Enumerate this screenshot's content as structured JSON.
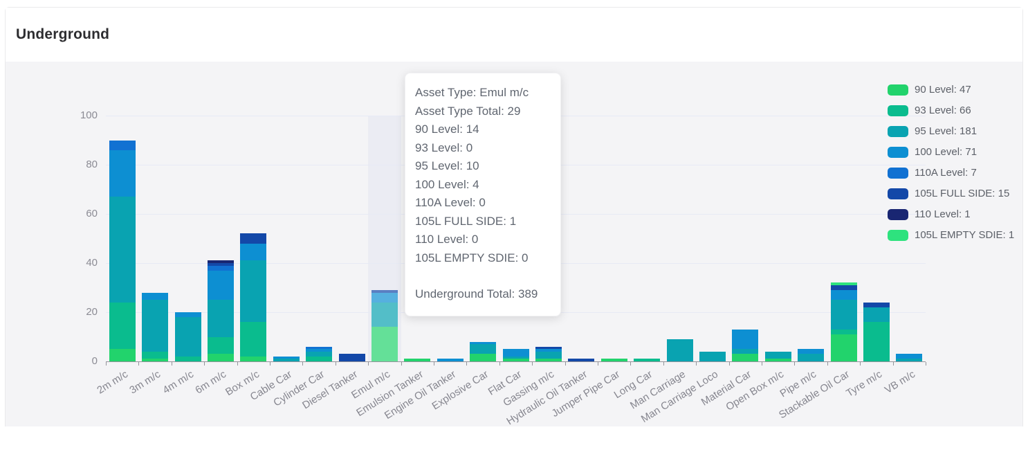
{
  "card": {
    "title": "Underground"
  },
  "chart_data": {
    "type": "bar",
    "stacked": true,
    "title": "Underground",
    "categories": [
      "2m m/c",
      "3m m/c",
      "4m m/c",
      "6m m/c",
      "Box m/c",
      "Cable Car",
      "Cylinder Car",
      "Diesel Tanker",
      "Emul m/c",
      "Emulsion Tanker",
      "Engine Oil Tanker",
      "Explosive Car",
      "Flat Car",
      "Gassing m/c",
      "Hydraulic Oil Tanker",
      "Jumper Pipe Car",
      "Long Car",
      "Man Carriage",
      "Man Carriage Loco",
      "Material Car",
      "Open Box m/c",
      "Pipe m/c",
      "Stackable Oil Car",
      "Tyre m/c",
      "VB m/c"
    ],
    "series": [
      {
        "name": "90 Level",
        "total": 47,
        "color": "#22d36c",
        "values": [
          5,
          1,
          0,
          3,
          2,
          0,
          0,
          0,
          14,
          1,
          0,
          3,
          1,
          1,
          0,
          1,
          0,
          0,
          0,
          3,
          1,
          0,
          11,
          0,
          0
        ]
      },
      {
        "name": "93 Level",
        "total": 66,
        "color": "#0abc8e",
        "values": [
          19,
          3,
          2,
          7,
          14,
          0,
          2,
          0,
          0,
          0,
          0,
          0,
          0,
          0,
          0,
          0,
          1,
          0,
          0,
          0,
          0,
          0,
          2,
          16,
          0
        ]
      },
      {
        "name": "95 Level",
        "total": 181,
        "color": "#09a3b1",
        "values": [
          43,
          21,
          16,
          15,
          25,
          1,
          2,
          0,
          10,
          0,
          0,
          4,
          1,
          3,
          0,
          0,
          0,
          9,
          4,
          2,
          3,
          3,
          12,
          6,
          1
        ]
      },
      {
        "name": "100 Level",
        "total": 71,
        "color": "#0d8fd2",
        "values": [
          19,
          3,
          2,
          12,
          7,
          1,
          1,
          0,
          4,
          0,
          1,
          1,
          3,
          1,
          0,
          0,
          0,
          0,
          0,
          8,
          0,
          2,
          4,
          0,
          2
        ]
      },
      {
        "name": "110A Level",
        "total": 7,
        "color": "#1171d2",
        "values": [
          4,
          0,
          0,
          2,
          0,
          0,
          1,
          0,
          0,
          0,
          0,
          0,
          0,
          0,
          0,
          0,
          0,
          0,
          0,
          0,
          0,
          0,
          0,
          0,
          0
        ]
      },
      {
        "name": "105L FULL SIDE",
        "total": 15,
        "color": "#1348a8",
        "values": [
          0,
          0,
          0,
          1,
          4,
          0,
          0,
          3,
          1,
          0,
          0,
          0,
          0,
          1,
          1,
          0,
          0,
          0,
          0,
          0,
          0,
          0,
          2,
          2,
          0
        ]
      },
      {
        "name": "110 Level",
        "total": 1,
        "color": "#192672",
        "values": [
          0,
          0,
          0,
          1,
          0,
          0,
          0,
          0,
          0,
          0,
          0,
          0,
          0,
          0,
          0,
          0,
          0,
          0,
          0,
          0,
          0,
          0,
          0,
          0,
          0
        ]
      },
      {
        "name": "105L EMPTY SDIE",
        "total": 1,
        "color": "#2ee27e",
        "values": [
          0,
          0,
          0,
          0,
          0,
          0,
          0,
          0,
          0,
          0,
          0,
          0,
          0,
          0,
          0,
          0,
          0,
          0,
          0,
          0,
          0,
          0,
          1,
          0,
          0
        ]
      }
    ],
    "category_totals": [
      90,
      28,
      20,
      41,
      52,
      2,
      6,
      3,
      29,
      1,
      1,
      8,
      5,
      6,
      1,
      1,
      1,
      9,
      4,
      13,
      4,
      5,
      32,
      24,
      3
    ],
    "grand_total": 389,
    "xlabel": "",
    "ylabel": "",
    "ylim": [
      0,
      100
    ],
    "yticks": [
      0,
      20,
      40,
      60,
      80,
      100
    ],
    "grid": true,
    "legend_position": "right",
    "highlighted_category": "Emul m/c"
  },
  "legend": {
    "items": [
      "90 Level: 47",
      "93 Level: 66",
      "95 Level: 181",
      "100 Level: 71",
      "110A Level: 7",
      "105L FULL SIDE: 15",
      "110 Level: 1",
      "105L EMPTY SDIE: 1"
    ]
  },
  "tooltip": {
    "lines": [
      "Asset Type: Emul m/c",
      "Asset Type Total: 29",
      "90 Level: 14",
      "93 Level: 0",
      "95 Level: 10",
      "100 Level: 4",
      "110A Level: 0",
      "105L FULL SIDE: 1",
      "110 Level: 0",
      "105L EMPTY SDIE: 0"
    ],
    "footer": "Underground Total: 389"
  },
  "axes": {
    "y_tick_labels": [
      "0",
      "20",
      "40",
      "60",
      "80",
      "100"
    ]
  }
}
